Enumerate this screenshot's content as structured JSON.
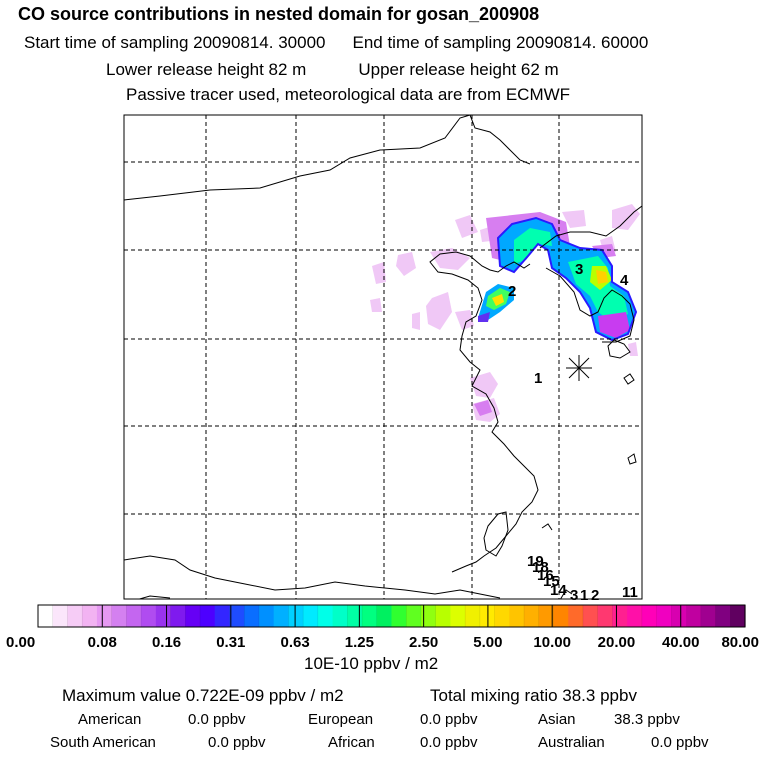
{
  "header": {
    "title": "CO  source contributions in nested domain for gosan_200908",
    "start_time": "Start time of sampling 20090814. 30000",
    "end_time": "End time of sampling 20090814. 60000",
    "lower_height": "Lower release height   82 m",
    "upper_height": "Upper release height   62 m",
    "tracer_note": "Passive tracer used, meteorological data are from ECMWF"
  },
  "map": {
    "site_labels": [
      "1",
      "2",
      "3",
      "4",
      "19",
      "18",
      "16",
      "15",
      "14",
      "3",
      "1",
      "2",
      "11"
    ],
    "receptor_marker": "asterisk"
  },
  "colorbar": {
    "ticks": [
      "0.00",
      "0.08",
      "0.16",
      "0.31",
      "0.63",
      "1.25",
      "2.50",
      "5.00",
      "10.00",
      "20.00",
      "40.00",
      "80.00"
    ],
    "unit": "10E-10 ppbv / m2",
    "colors": [
      "#ffffff",
      "#fbe6fb",
      "#f6ccf6",
      "#f2b3f2",
      "#e699f2",
      "#d480f0",
      "#c466f0",
      "#b04cf0",
      "#9933ee",
      "#7f1aee",
      "#6600f5",
      "#4d00ff",
      "#3326ff",
      "#1f4cff",
      "#0a6eff",
      "#0090ff",
      "#00b0ff",
      "#00d0ff",
      "#00eaff",
      "#00ffe8",
      "#00ffc8",
      "#00ffa5",
      "#00ff80",
      "#00f060",
      "#30ff30",
      "#60ff20",
      "#90ff10",
      "#b8ff00",
      "#dcff00",
      "#f0f000",
      "#ffea00",
      "#ffd800",
      "#ffc400",
      "#ffb000",
      "#ff9a00",
      "#ff8500",
      "#ff6a2a",
      "#ff5050",
      "#ff3870",
      "#ff2090",
      "#ff10a8",
      "#ff00b8",
      "#f000c0",
      "#d800b0",
      "#c000a0",
      "#a00090",
      "#800080",
      "#600060"
    ]
  },
  "summary": {
    "max_value": "Maximum value  0.722E-09 ppbv / m2",
    "total": "Total mixing ratio      38.3 ppbv",
    "regions": [
      {
        "name": "American",
        "value": "0.0 ppbv"
      },
      {
        "name": "European",
        "value": "0.0 ppbv"
      },
      {
        "name": "Asian",
        "value": "38.3 ppbv"
      },
      {
        "name": "South American",
        "value": "0.0 ppbv"
      },
      {
        "name": "African",
        "value": "0.0 ppbv"
      },
      {
        "name": "Australian",
        "value": "0.0 ppbv"
      }
    ]
  },
  "chart_data": {
    "type": "heatmap",
    "title": "CO  source contributions in nested domain for gosan_200908",
    "colorbar_ticks": [
      0.0,
      0.08,
      0.16,
      0.31,
      0.63,
      1.25,
      2.5,
      5.0,
      10.0,
      20.0,
      40.0,
      80.0
    ],
    "colorbar_unit": "10E-10 ppbv / m2",
    "max_value": "0.722E-09 ppbv / m2",
    "total_mixing_ratio": "38.3 ppbv",
    "grid": true
  }
}
